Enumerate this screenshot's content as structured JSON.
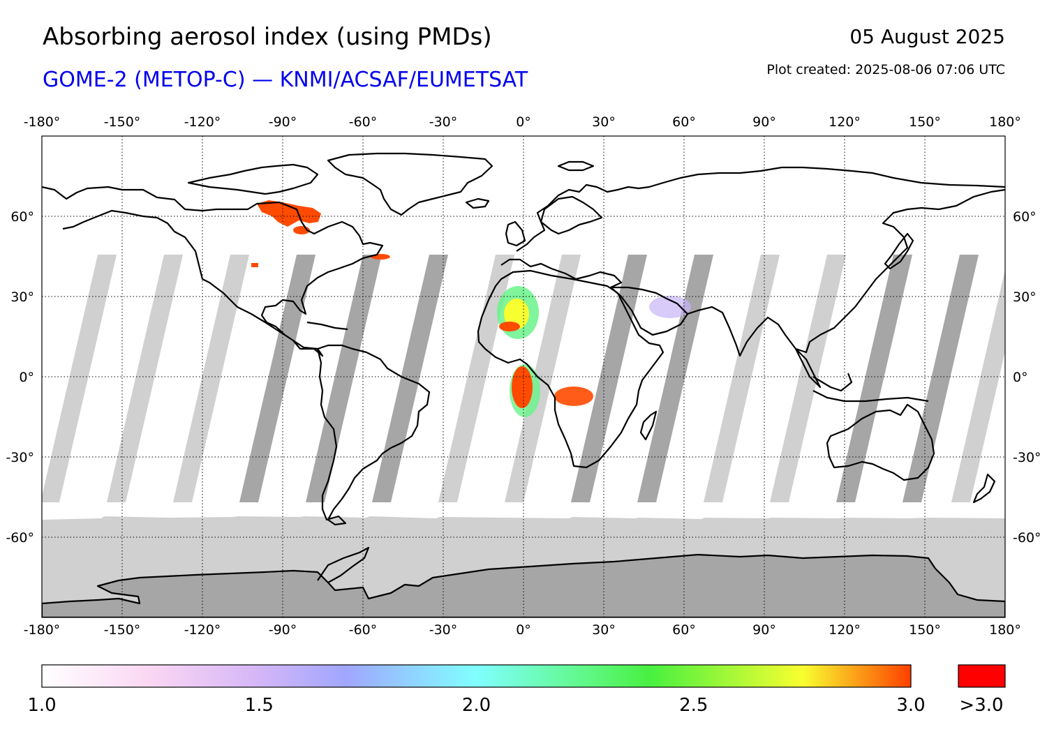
{
  "header": {
    "title": "Absorbing aerosol index (using PMDs)",
    "subtitle": "GOME-2 (METOP-C) — KNMI/ACSAF/EUMETSAT",
    "date": "05 August 2025",
    "created": "Plot created: 2025-08-06 07:06 UTC"
  },
  "colors": {
    "subtitle": "#0000ee",
    "no_data_light": "#d0d0d0",
    "no_data_dark": "#a6a6a6",
    "coastline": "#000000",
    "high_aerosol": "#ff4a00",
    "over_range": "#ff0000"
  },
  "map": {
    "projection": "equirectangular",
    "lon_range": [
      -180,
      180
    ],
    "lat_range": [
      -90,
      90
    ],
    "lon_ticks": [
      -180,
      -150,
      -120,
      -90,
      -60,
      -30,
      0,
      30,
      60,
      90,
      120,
      150,
      180
    ],
    "lon_tick_labels": [
      "-180°",
      "-150°",
      "-120°",
      "-90°",
      "-60°",
      "-30°",
      "0°",
      "30°",
      "60°",
      "90°",
      "120°",
      "150°",
      "180°"
    ],
    "lat_ticks": [
      60,
      30,
      0,
      -30,
      -60
    ],
    "lat_tick_labels": [
      "60°",
      "30°",
      "0°",
      "-30°",
      "-60°"
    ],
    "gridlines": "dotted"
  },
  "colorbar": {
    "min": 1.0,
    "max": 3.0,
    "tick_values": [
      1.0,
      1.5,
      2.0,
      2.5,
      3.0
    ],
    "tick_labels": [
      "1.0",
      "1.5",
      "2.0",
      "2.5",
      "3.0"
    ],
    "over_label": ">3.0",
    "stops": [
      {
        "value": 1.0,
        "color": "#ffffff"
      },
      {
        "value": 1.25,
        "color": "#fad6f3"
      },
      {
        "value": 1.5,
        "color": "#d4b6f7"
      },
      {
        "value": 1.7,
        "color": "#a0a6ff"
      },
      {
        "value": 2.0,
        "color": "#80ffff"
      },
      {
        "value": 2.25,
        "color": "#60f888"
      },
      {
        "value": 2.4,
        "color": "#48f040"
      },
      {
        "value": 2.75,
        "color": "#f8ff30"
      },
      {
        "value": 3.0,
        "color": "#ff4000"
      }
    ]
  }
}
